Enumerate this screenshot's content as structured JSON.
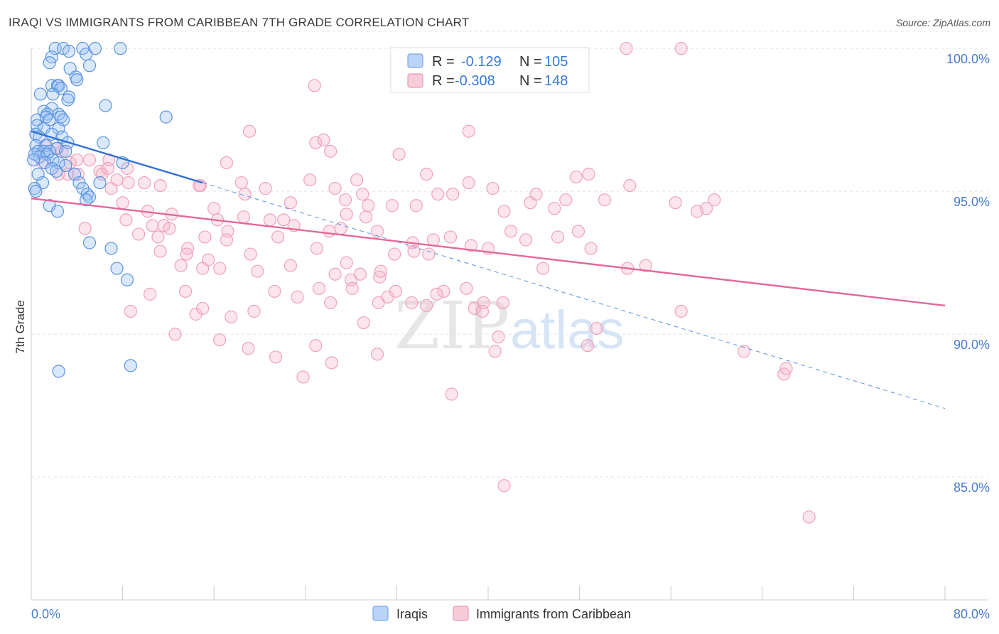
{
  "header": {
    "title": "IRAQI VS IMMIGRANTS FROM CARIBBEAN 7TH GRADE CORRELATION CHART",
    "source": "Source: ZipAtlas.com"
  },
  "watermark": {
    "part1": "ZIP",
    "part2": "atlas"
  },
  "legend": {
    "rows": [
      {
        "r_label": "R =",
        "r_value": "-0.129",
        "n_label": "N =",
        "n_value": "105",
        "color": "#9dc3f5"
      },
      {
        "r_label": "R =",
        "r_value": "-0.308",
        "n_label": "N =",
        "n_value": "148",
        "color": "#f5b5c8"
      }
    ]
  },
  "bottom_legend": [
    {
      "label": "Iraqis",
      "color": "#9dc3f5"
    },
    {
      "label": "Immigrants from Caribbean",
      "color": "#f5b5c8"
    }
  ],
  "chart_data": {
    "type": "scatter",
    "title": "IRAQI VS IMMIGRANTS FROM CARIBBEAN 7TH GRADE CORRELATION CHART",
    "xlabel": "",
    "ylabel": "7th Grade",
    "xlim": [
      0,
      80
    ],
    "ylim": [
      80.7,
      100.7
    ],
    "x_tick_labels": [
      "0.0%",
      "80.0%"
    ],
    "y_ticks": [
      85,
      90,
      95,
      100
    ],
    "y_tick_labels": [
      "85.0%",
      "90.0%",
      "95.0%",
      "100.0%"
    ],
    "grid": true,
    "colors": {
      "iraqis": "#4a86dc",
      "caribbean": "#e8729a"
    },
    "series": [
      {
        "name": "Iraqis",
        "trend": {
          "x": [
            0,
            15
          ],
          "y": [
            97.1,
            95.3
          ],
          "dashed_extension_to": [
            80,
            87.4
          ]
        },
        "points": [
          [
            2.1,
            100.0
          ],
          [
            2.8,
            100.0
          ],
          [
            4.5,
            100.0
          ],
          [
            5.6,
            100.0
          ],
          [
            7.8,
            100.0
          ],
          [
            3.3,
            99.9
          ],
          [
            4.8,
            99.8
          ],
          [
            1.8,
            99.7
          ],
          [
            1.6,
            99.5
          ],
          [
            5.1,
            99.4
          ],
          [
            3.4,
            99.3
          ],
          [
            3.9,
            99.0
          ],
          [
            4.0,
            98.9
          ],
          [
            1.8,
            98.7
          ],
          [
            2.3,
            98.7
          ],
          [
            2.4,
            98.7
          ],
          [
            2.6,
            98.6
          ],
          [
            0.8,
            98.4
          ],
          [
            1.9,
            98.4
          ],
          [
            3.3,
            98.3
          ],
          [
            3.2,
            98.2
          ],
          [
            6.5,
            98.0
          ],
          [
            1.8,
            97.9
          ],
          [
            1.1,
            97.8
          ],
          [
            1.4,
            97.7
          ],
          [
            2.4,
            97.7
          ],
          [
            2.6,
            97.6
          ],
          [
            0.5,
            97.5
          ],
          [
            1.3,
            97.6
          ],
          [
            1.6,
            97.5
          ],
          [
            2.8,
            97.5
          ],
          [
            11.8,
            97.6
          ],
          [
            0.5,
            97.3
          ],
          [
            1.1,
            97.2
          ],
          [
            2.4,
            97.2
          ],
          [
            0.4,
            97.0
          ],
          [
            1.8,
            97.0
          ],
          [
            0.7,
            96.9
          ],
          [
            2.7,
            96.9
          ],
          [
            3.2,
            96.7
          ],
          [
            6.3,
            96.7
          ],
          [
            0.4,
            96.6
          ],
          [
            1.3,
            96.6
          ],
          [
            2.2,
            96.5
          ],
          [
            0.6,
            96.4
          ],
          [
            1.1,
            96.4
          ],
          [
            1.6,
            96.4
          ],
          [
            3.0,
            96.4
          ],
          [
            0.3,
            96.3
          ],
          [
            1.4,
            96.3
          ],
          [
            0.7,
            96.2
          ],
          [
            1.9,
            96.1
          ],
          [
            0.2,
            96.1
          ],
          [
            1.2,
            96.0
          ],
          [
            2.4,
            96.0
          ],
          [
            8.0,
            96.0
          ],
          [
            3.0,
            95.9
          ],
          [
            1.8,
            95.8
          ],
          [
            2.2,
            95.7
          ],
          [
            0.6,
            95.6
          ],
          [
            3.8,
            95.6
          ],
          [
            1.0,
            95.3
          ],
          [
            4.2,
            95.3
          ],
          [
            0.3,
            95.1
          ],
          [
            4.5,
            95.1
          ],
          [
            0.4,
            95.0
          ],
          [
            4.9,
            94.9
          ],
          [
            5.1,
            94.8
          ],
          [
            4.8,
            94.7
          ],
          [
            1.6,
            94.5
          ],
          [
            2.3,
            94.3
          ],
          [
            5.1,
            93.2
          ],
          [
            7.0,
            93.0
          ],
          [
            7.5,
            92.3
          ],
          [
            8.4,
            91.9
          ],
          [
            2.4,
            88.7
          ],
          [
            8.7,
            88.9
          ],
          [
            6.0,
            95.3
          ]
        ]
      },
      {
        "name": "Immigrants from Caribbean",
        "trend": {
          "x": [
            0,
            80
          ],
          "y": [
            94.75,
            91.0
          ]
        },
        "points": [
          [
            52.1,
            100.0
          ],
          [
            56.9,
            100.0
          ],
          [
            24.8,
            98.7
          ],
          [
            38.3,
            97.1
          ],
          [
            19.1,
            97.1
          ],
          [
            24.9,
            96.7
          ],
          [
            25.6,
            96.8
          ],
          [
            26.2,
            96.4
          ],
          [
            1.2,
            96.6
          ],
          [
            2.3,
            96.5
          ],
          [
            2.7,
            96.4
          ],
          [
            3.4,
            96.0
          ],
          [
            4.0,
            96.1
          ],
          [
            5.1,
            96.1
          ],
          [
            6.8,
            96.1
          ],
          [
            8.4,
            95.8
          ],
          [
            6.0,
            95.7
          ],
          [
            1.0,
            96.0
          ],
          [
            2.4,
            95.6
          ],
          [
            3.2,
            95.6
          ],
          [
            4.1,
            95.6
          ],
          [
            6.2,
            95.6
          ],
          [
            6.7,
            95.8
          ],
          [
            7.5,
            95.4
          ],
          [
            7.0,
            95.1
          ],
          [
            8.5,
            95.3
          ],
          [
            9.9,
            95.3
          ],
          [
            11.3,
            95.2
          ],
          [
            14.8,
            95.2
          ],
          [
            17.1,
            96.0
          ],
          [
            18.4,
            95.3
          ],
          [
            18.7,
            94.9
          ],
          [
            20.5,
            95.1
          ],
          [
            22.7,
            94.6
          ],
          [
            26.6,
            95.1
          ],
          [
            27.5,
            94.7
          ],
          [
            28.5,
            95.4
          ],
          [
            29.0,
            94.9
          ],
          [
            31.6,
            94.5
          ],
          [
            33.7,
            94.5
          ],
          [
            34.6,
            95.6
          ],
          [
            35.6,
            94.9
          ],
          [
            36.9,
            94.9
          ],
          [
            38.3,
            95.3
          ],
          [
            40.4,
            95.1
          ],
          [
            41.4,
            94.3
          ],
          [
            43.7,
            94.6
          ],
          [
            44.2,
            94.9
          ],
          [
            46.8,
            94.7
          ],
          [
            47.7,
            95.5
          ],
          [
            48.8,
            95.6
          ],
          [
            50.2,
            94.7
          ],
          [
            52.4,
            95.2
          ],
          [
            56.4,
            94.6
          ],
          [
            58.3,
            94.3
          ],
          [
            59.1,
            94.4
          ],
          [
            59.8,
            94.7
          ],
          [
            4.7,
            93.7
          ],
          [
            8.0,
            94.6
          ],
          [
            8.3,
            94.0
          ],
          [
            10.2,
            94.3
          ],
          [
            10.6,
            93.8
          ],
          [
            11.1,
            93.4
          ],
          [
            11.6,
            93.8
          ],
          [
            12.3,
            94.2
          ],
          [
            13.7,
            93.0
          ],
          [
            15.2,
            93.4
          ],
          [
            16.0,
            94.4
          ],
          [
            16.3,
            94.0
          ],
          [
            17.2,
            93.6
          ],
          [
            18.6,
            94.1
          ],
          [
            20.9,
            94.0
          ],
          [
            21.6,
            93.4
          ],
          [
            22.1,
            94.0
          ],
          [
            23.0,
            93.8
          ],
          [
            26.1,
            93.6
          ],
          [
            27.1,
            93.7
          ],
          [
            27.6,
            94.2
          ],
          [
            29.3,
            94.1
          ],
          [
            30.3,
            93.6
          ],
          [
            31.8,
            92.8
          ],
          [
            33.4,
            93.2
          ],
          [
            35.2,
            93.3
          ],
          [
            36.7,
            93.4
          ],
          [
            38.5,
            93.1
          ],
          [
            40.0,
            93.0
          ],
          [
            42.0,
            93.6
          ],
          [
            43.3,
            93.3
          ],
          [
            45.8,
            94.4
          ],
          [
            46.1,
            93.4
          ],
          [
            47.9,
            93.6
          ],
          [
            49.0,
            93.0
          ],
          [
            9.4,
            93.5
          ],
          [
            11.3,
            92.9
          ],
          [
            12.1,
            93.7
          ],
          [
            13.1,
            92.4
          ],
          [
            13.6,
            92.8
          ],
          [
            15.0,
            92.3
          ],
          [
            15.5,
            92.6
          ],
          [
            17.1,
            93.3
          ],
          [
            19.2,
            92.8
          ],
          [
            19.8,
            92.2
          ],
          [
            22.7,
            92.4
          ],
          [
            25.0,
            93.0
          ],
          [
            26.6,
            92.1
          ],
          [
            27.6,
            92.5
          ],
          [
            28.0,
            91.9
          ],
          [
            28.8,
            92.1
          ],
          [
            30.5,
            92.0
          ],
          [
            30.6,
            92.2
          ],
          [
            33.5,
            92.9
          ],
          [
            34.8,
            92.8
          ],
          [
            31.9,
            91.5
          ],
          [
            33.3,
            91.1
          ],
          [
            36.1,
            91.5
          ],
          [
            38.1,
            91.6
          ],
          [
            39.6,
            91.1
          ],
          [
            41.3,
            91.1
          ],
          [
            44.8,
            92.3
          ],
          [
            52.2,
            92.3
          ],
          [
            53.8,
            92.4
          ],
          [
            8.7,
            90.8
          ],
          [
            10.4,
            91.4
          ],
          [
            12.6,
            90.0
          ],
          [
            13.5,
            91.5
          ],
          [
            14.4,
            90.7
          ],
          [
            15.0,
            90.9
          ],
          [
            16.5,
            92.3
          ],
          [
            17.5,
            90.6
          ],
          [
            19.5,
            90.8
          ],
          [
            21.3,
            91.5
          ],
          [
            23.3,
            91.3
          ],
          [
            25.2,
            91.6
          ],
          [
            26.2,
            91.1
          ],
          [
            28.1,
            91.6
          ],
          [
            29.1,
            90.4
          ],
          [
            30.4,
            91.1
          ],
          [
            31.2,
            91.3
          ],
          [
            34.6,
            91.0
          ],
          [
            35.5,
            91.4
          ],
          [
            38.8,
            90.9
          ],
          [
            39.5,
            90.8
          ],
          [
            49.5,
            90.2
          ],
          [
            56.9,
            90.8
          ],
          [
            16.5,
            89.8
          ],
          [
            19.0,
            89.5
          ],
          [
            21.4,
            89.2
          ],
          [
            23.8,
            88.5
          ],
          [
            24.9,
            89.6
          ],
          [
            26.3,
            89.0
          ],
          [
            30.3,
            89.3
          ],
          [
            36.8,
            87.9
          ],
          [
            40.6,
            89.4
          ],
          [
            40.9,
            89.9
          ],
          [
            48.7,
            89.6
          ],
          [
            62.4,
            89.4
          ],
          [
            65.9,
            88.6
          ],
          [
            66.1,
            88.8
          ],
          [
            41.4,
            84.7
          ],
          [
            68.1,
            83.6
          ],
          [
            24.4,
            95.4
          ],
          [
            32.2,
            96.3
          ],
          [
            29.5,
            94.5
          ],
          [
            14.7,
            95.2
          ]
        ]
      }
    ]
  }
}
